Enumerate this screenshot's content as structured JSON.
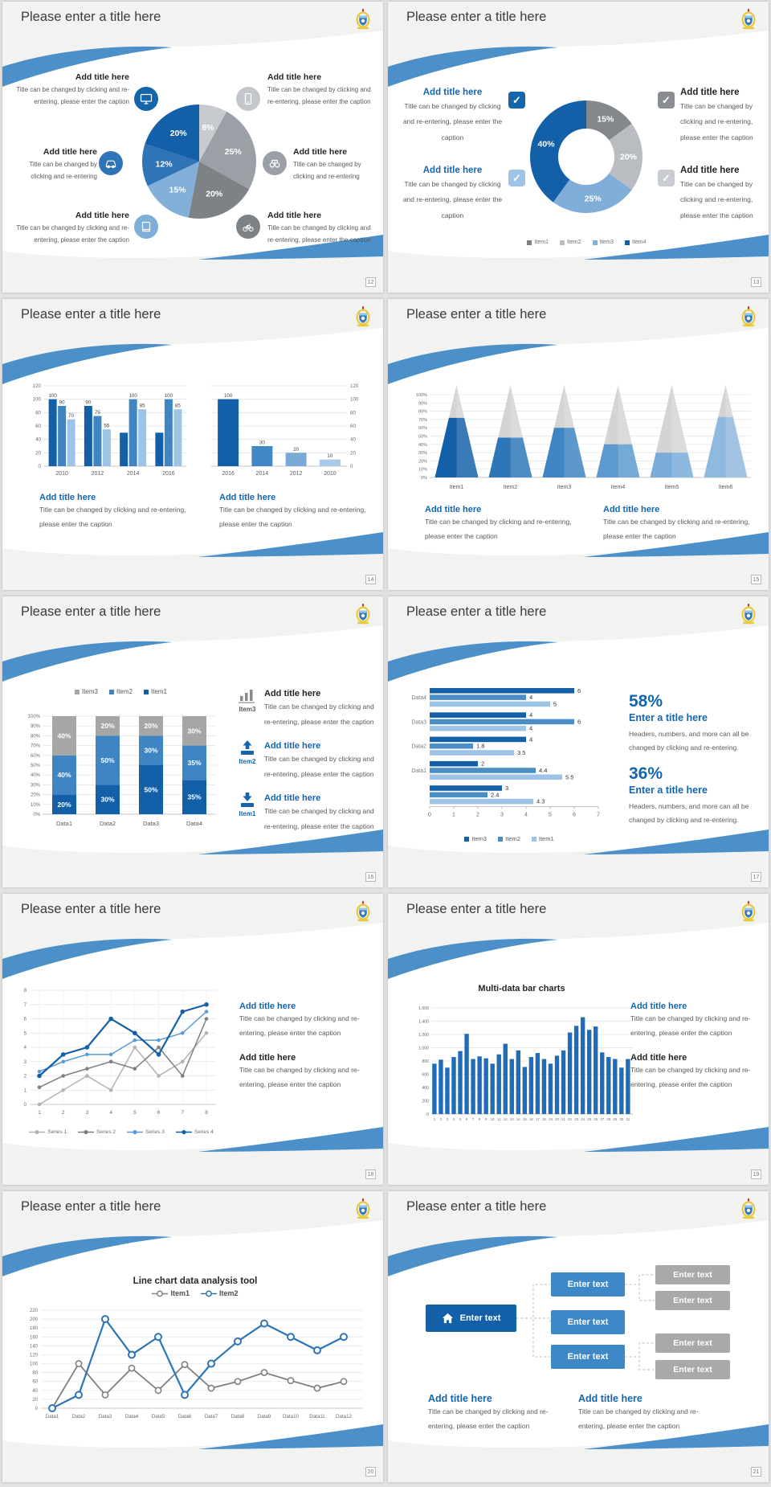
{
  "slide_title": "Please enter a title here",
  "logo": "university-crest",
  "text": {
    "add_title": "Add title here",
    "caption": "Title can be changed by clicking and re-entering, please enter the caption",
    "caption_short": "Title can be changed by clicking and re-entering",
    "stat_caption": "Headers, numbers, and more can all be changed by clicking and re-entering.",
    "enter_title": "Enter a title here",
    "enter_text": "Enter text"
  },
  "colors": {
    "accent_blue": "#1565ad",
    "mid_blue": "#3f85c4",
    "light_blue": "#9dc3e6",
    "swoosh_blue": "#4b90c8",
    "gray": "#a6a6a6"
  },
  "slides": [
    {
      "page": "12"
    },
    {
      "page": "13"
    },
    {
      "page": "14"
    },
    {
      "page": "15"
    },
    {
      "page": "16"
    },
    {
      "page": "17",
      "percent_1": "58%",
      "percent_2": "36%"
    },
    {
      "page": "18"
    },
    {
      "page": "19"
    },
    {
      "page": "20"
    },
    {
      "page": "21"
    }
  ],
  "chart_data": [
    {
      "id": "pie-breakdown",
      "type": "pie",
      "title": "",
      "legend_position": "none",
      "values": [
        8,
        25,
        20,
        15,
        12,
        20
      ],
      "labels": [
        "8%",
        "25%",
        "20%",
        "15%",
        "12%",
        "20%"
      ],
      "colors": [
        "#c7cbd0",
        "#9aa0a5",
        "#7d8287",
        "#82b0d8",
        "#2e74b6",
        "#1460a8"
      ]
    },
    {
      "id": "donut-items",
      "type": "pie",
      "subtype": "donut",
      "legend_position": "bottom",
      "values": [
        15,
        20,
        25,
        40
      ],
      "labels": [
        "15%",
        "20%",
        "25%",
        "40%"
      ],
      "colors": [
        "#83888d",
        "#b9bdc1",
        "#7fafd8",
        "#1460a8"
      ],
      "legend": [
        {
          "label": "Item1",
          "color": "#7d8287"
        },
        {
          "label": "Item2",
          "color": "#b9bdc1"
        },
        {
          "label": "Item3",
          "color": "#7fafd8"
        },
        {
          "label": "Item4",
          "color": "#1460a8"
        }
      ]
    },
    {
      "id": "bars-grouped",
      "type": "bar",
      "ylim": [
        0,
        120
      ],
      "ystep": 20,
      "axis_side": "left",
      "grid": true,
      "categories": [
        "2010",
        "2012",
        "2014",
        "2016"
      ],
      "series": [
        {
          "color": "#1460a8",
          "values": [
            100,
            90,
            50,
            50
          ],
          "labels": [
            "100",
            "90",
            "",
            ""
          ]
        },
        {
          "color": "#3f85c4",
          "values": [
            90,
            75,
            100,
            100
          ],
          "labels": [
            "90",
            "75",
            "100",
            "100"
          ]
        },
        {
          "color": "#9dc3e6",
          "values": [
            70,
            55,
            85,
            85
          ],
          "labels": [
            "70",
            "55",
            "85",
            "85"
          ]
        }
      ]
    },
    {
      "id": "bars-desc",
      "type": "bar",
      "ylim": [
        0,
        120
      ],
      "ystep": 20,
      "axis_side": "right",
      "grid": true,
      "categories": [
        "2016",
        "2014",
        "2012",
        "2010"
      ],
      "series": [
        {
          "colors": [
            "#1460a8",
            "#4288c5",
            "#79aad5",
            "#a9c9e8"
          ],
          "values": [
            100,
            30,
            20,
            10
          ],
          "labels": [
            "100",
            "30",
            "20",
            "10"
          ]
        }
      ]
    },
    {
      "id": "cones",
      "type": "bar",
      "subtype": "cone",
      "ylim": [
        0,
        100
      ],
      "ystep": 10,
      "categories": [
        "Item1",
        "Item2",
        "Item3",
        "Item4",
        "Item5",
        "Item6"
      ],
      "values": [
        72,
        48,
        60,
        40,
        30,
        73
      ],
      "colors": [
        "#1460a8",
        "#2e76b8",
        "#3f85c4",
        "#5b99cf",
        "#79acd8",
        "#8fb9de"
      ]
    },
    {
      "id": "stacked",
      "type": "bar",
      "subtype": "stacked",
      "ylim": [
        0,
        100
      ],
      "ystep": 10,
      "legend_position": "top",
      "categories": [
        "Data1",
        "Data2",
        "Data3",
        "Data4"
      ],
      "series": [
        {
          "name": "Item1",
          "color": "#1460a8",
          "values": [
            20,
            30,
            50,
            35
          ]
        },
        {
          "name": "Item2",
          "color": "#3f85c4",
          "values": [
            40,
            50,
            30,
            35
          ]
        },
        {
          "name": "Item3",
          "color": "#a6a6a6",
          "values": [
            40,
            20,
            20,
            30
          ]
        }
      ],
      "legend_order": [
        "Item3",
        "Item2",
        "Item1"
      ]
    },
    {
      "id": "hbars",
      "type": "bar",
      "subtype": "horizontal",
      "xlim": [
        0,
        7
      ],
      "legend_position": "bottom",
      "groups": [
        {
          "label": "Data4",
          "values": [
            6,
            4,
            5
          ]
        },
        {
          "label": "Data3",
          "values": [
            4,
            6,
            4
          ]
        },
        {
          "label": "Data2",
          "values": [
            4,
            1.8,
            3.5
          ]
        },
        {
          "label": "Data1",
          "values": [
            2,
            4.4,
            5.5
          ]
        },
        {
          "label": "",
          "values": [
            3,
            2.4,
            4.3
          ]
        }
      ],
      "colors": [
        "#1460a8",
        "#4b8ec6",
        "#9dc3e6"
      ],
      "legend": [
        {
          "label": "Item3",
          "color": "#1460a8"
        },
        {
          "label": "Item2",
          "color": "#4b8ec6"
        },
        {
          "label": "Item1",
          "color": "#9dc3e6"
        }
      ]
    },
    {
      "id": "lines4",
      "type": "line",
      "ylim": [
        0,
        8
      ],
      "ystep": 1,
      "legend_position": "bottom",
      "grid": true,
      "x_labels": [
        "1",
        "2",
        "3",
        "4",
        "5",
        "6",
        "7",
        "8"
      ],
      "series": [
        {
          "name": "Series 1",
          "color": "#b3b3b3",
          "values": [
            0,
            1,
            2,
            1,
            4,
            2,
            3,
            5
          ]
        },
        {
          "name": "Series 2",
          "color": "#7f7f7f",
          "values": [
            1.2,
            2,
            2.5,
            3,
            2.5,
            4,
            2,
            6
          ]
        },
        {
          "name": "Series 3",
          "color": "#5b9bd5",
          "values": [
            2.3,
            3,
            3.5,
            3.5,
            4.5,
            4.5,
            5,
            6.5
          ]
        },
        {
          "name": "Series 4",
          "color": "#1460a8",
          "values": [
            2,
            3.5,
            4,
            6,
            5,
            3.5,
            6.5,
            7
          ]
        }
      ]
    },
    {
      "id": "bars31",
      "type": "bar",
      "title": "Multi-data bar charts",
      "ylim": [
        0,
        1600
      ],
      "ystep": 200,
      "grid": true,
      "color": "#1f6db8",
      "x_labels": [
        "1",
        "2",
        "3",
        "4",
        "5",
        "6",
        "7",
        "8",
        "9",
        "10",
        "11",
        "12",
        "13",
        "14",
        "15",
        "16",
        "17",
        "18",
        "19",
        "20",
        "21",
        "22",
        "23",
        "24",
        "25",
        "26",
        "27",
        "28",
        "29",
        "30",
        "31"
      ],
      "values": [
        760,
        820,
        700,
        860,
        950,
        1210,
        830,
        870,
        840,
        760,
        900,
        1060,
        830,
        960,
        710,
        860,
        920,
        830,
        760,
        880,
        960,
        1230,
        1330,
        1460,
        1270,
        1320,
        930,
        860,
        830,
        700,
        830
      ]
    },
    {
      "id": "lines2",
      "type": "line",
      "title": "Line chart data analysis tool",
      "ylim": [
        0,
        220
      ],
      "ystep": 20,
      "legend_position": "top",
      "grid": true,
      "categories": [
        "Data1",
        "Data2",
        "Data3",
        "Data4",
        "Data5",
        "Data6",
        "Data7",
        "Data8",
        "Data9",
        "Data10",
        "Data11",
        "Data12"
      ],
      "series": [
        {
          "name": "Item1",
          "color": "#808080",
          "values": [
            0,
            100,
            30,
            90,
            40,
            98,
            45,
            60,
            80,
            62,
            45,
            60
          ]
        },
        {
          "name": "Item2",
          "color": "#2e75b6",
          "values": [
            0,
            30,
            200,
            120,
            160,
            30,
            100,
            150,
            190,
            160,
            130,
            160
          ]
        }
      ]
    }
  ]
}
